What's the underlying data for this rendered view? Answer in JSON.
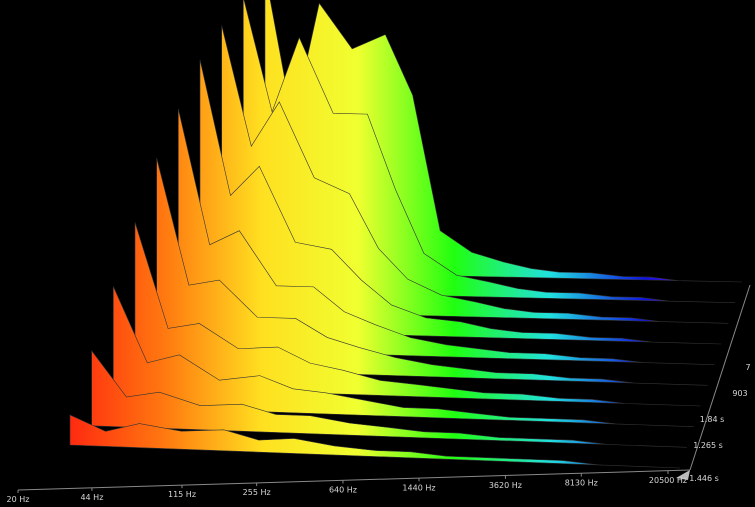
{
  "chart_data": {
    "type": "waterfall",
    "x": [
      20,
      30,
      44,
      71,
      115,
      171,
      255,
      404,
      640,
      960,
      1440,
      2280,
      3620,
      5420,
      8130,
      12900,
      20500
    ],
    "xlim": [
      20,
      20500
    ],
    "xticks": [
      {
        "value": 20,
        "label": "20 Hz"
      },
      {
        "value": 44,
        "label": "44 Hz"
      },
      {
        "value": 115,
        "label": "115 Hz"
      },
      {
        "value": 255,
        "label": "255 Hz"
      },
      {
        "value": 640,
        "label": "640 Hz"
      },
      {
        "value": 1440,
        "label": "1440 Hz"
      },
      {
        "value": 3620,
        "label": "3620 Hz"
      },
      {
        "value": 8130,
        "label": "8130 Hz"
      },
      {
        "value": 20500,
        "label": "20500 Hz"
      }
    ],
    "time_ticks": [
      "1.446 s",
      "1.265 s",
      "1.84 s",
      "903",
      "7"
    ],
    "zlim": [
      0,
      100
    ],
    "colors": [
      "#ff2a10",
      "#ff7a10",
      "#ffe020",
      "#f0ff30",
      "#20ff10",
      "#20e0e0",
      "#1010e0",
      "#e010e0"
    ],
    "slices": [
      {
        "values": [
          10,
          5,
          8,
          6,
          7,
          4,
          5,
          3,
          2,
          2,
          1,
          1,
          1,
          1,
          0,
          0,
          0
        ]
      },
      {
        "values": [
          25,
          10,
          12,
          8,
          9,
          6,
          6,
          4,
          3,
          2,
          2,
          1,
          1,
          1,
          0,
          0,
          0
        ]
      },
      {
        "values": [
          40,
          15,
          18,
          10,
          12,
          8,
          7,
          5,
          3,
          3,
          2,
          1,
          1,
          1,
          0,
          0,
          0
        ]
      },
      {
        "values": [
          55,
          20,
          22,
          14,
          15,
          10,
          8,
          5,
          4,
          3,
          2,
          2,
          1,
          1,
          0,
          0,
          0
        ]
      },
      {
        "values": [
          70,
          28,
          30,
          18,
          18,
          12,
          9,
          6,
          4,
          3,
          2,
          2,
          1,
          1,
          0,
          0,
          0
        ]
      },
      {
        "values": [
          80,
          35,
          40,
          22,
          22,
          14,
          10,
          6,
          4,
          3,
          2,
          2,
          1,
          1,
          0,
          0,
          0
        ]
      },
      {
        "values": [
          90,
          45,
          55,
          30,
          28,
          18,
          10,
          6,
          5,
          3,
          2,
          2,
          1,
          1,
          0,
          0,
          0
        ]
      },
      {
        "values": [
          95,
          55,
          70,
          45,
          40,
          22,
          12,
          7,
          5,
          3,
          2,
          2,
          1,
          1,
          0,
          0,
          0
        ]
      },
      {
        "values": [
          98,
          60,
          85,
          60,
          60,
          35,
          14,
          7,
          5,
          3,
          2,
          2,
          1,
          1,
          0,
          0,
          0
        ]
      },
      {
        "values": [
          100,
          50,
          90,
          75,
          80,
          60,
          15,
          8,
          5,
          3,
          2,
          2,
          1,
          1,
          0,
          0,
          0
        ]
      }
    ]
  }
}
